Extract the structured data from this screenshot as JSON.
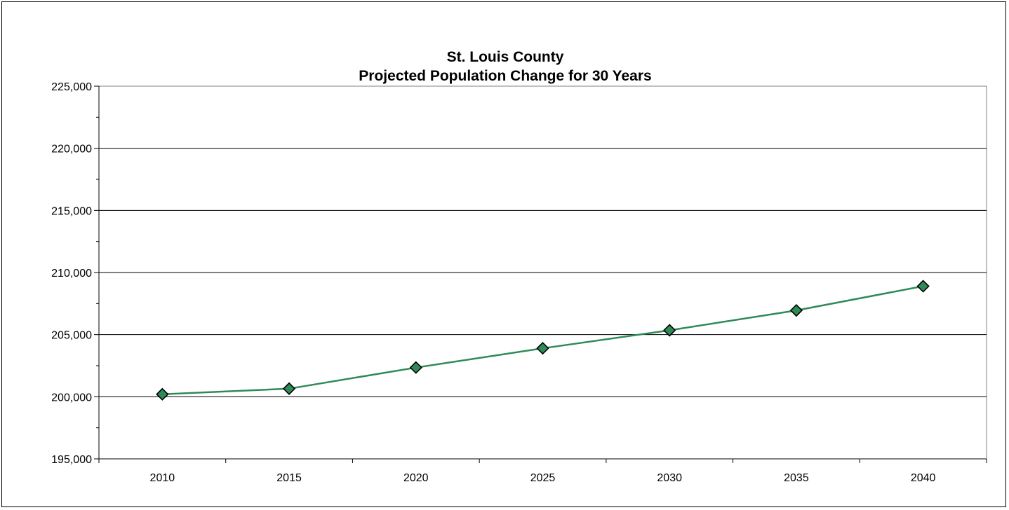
{
  "chart_data": {
    "type": "line",
    "title": "St. Louis County",
    "subtitle": "Projected Population Change for 30 Years",
    "xlabel": "",
    "ylabel": "",
    "categories": [
      "2010",
      "2015",
      "2020",
      "2025",
      "2030",
      "2035",
      "2040"
    ],
    "series": [
      {
        "values": [
          200200,
          200650,
          202350,
          203900,
          205350,
          206950,
          208900
        ],
        "color": "#2e8b57",
        "marker": "diamond"
      }
    ],
    "ylim": [
      195000,
      225000
    ],
    "y_major_step": 5000,
    "y_minor_step": 2500,
    "y_tick_labels": [
      "195,000",
      "200,000",
      "205,000",
      "210,000",
      "215,000",
      "220,000",
      "225,000"
    ],
    "grid": "horizontal-major",
    "legend": "none"
  }
}
